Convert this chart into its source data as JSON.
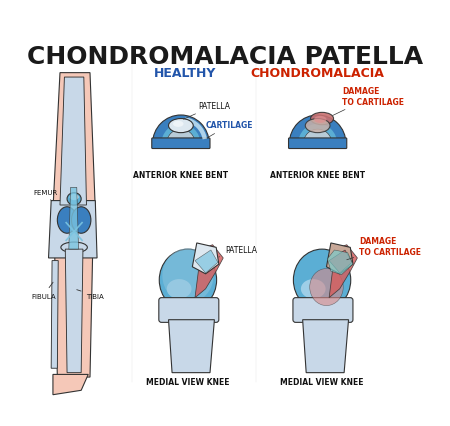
{
  "title": "CHONDROMALACIA PATELLA",
  "title_fontsize": 18,
  "title_weight": "bold",
  "title_color": "#1a1a1a",
  "bg_color": "#ffffff",
  "healthy_label": "HEALTHY",
  "chondro_label": "CHONDROMALACIA",
  "healthy_color": "#2255aa",
  "chondro_color": "#cc2200",
  "labels": {
    "patella": "PATELLA",
    "cartilage": "CARTILAGE",
    "damage": "DAMAGE\nTO CARTILAGE",
    "femur": "FEMUR",
    "patella_side": "PATELLA",
    "fibula": "FIBULA",
    "tibia": "TIBIA",
    "anterior_knee": "ANTERIOR KNEE BENT",
    "medial_view": "MEDIAL VIEW KNEE"
  },
  "label_fontsize": 5.5,
  "sublabel_fontsize": 6.5,
  "blue_light": "#a8d4e8",
  "blue_mid": "#5baed4",
  "blue_dark": "#3a7fbf",
  "blue_cartilage": "#7bc4e0",
  "gray_bone": "#c8d8e8",
  "red_damage": "#d46060",
  "pink_skin": "#f5c8b8",
  "teal_tendon": "#7acbcb",
  "outline_color": "#333333",
  "line_width": 0.8
}
